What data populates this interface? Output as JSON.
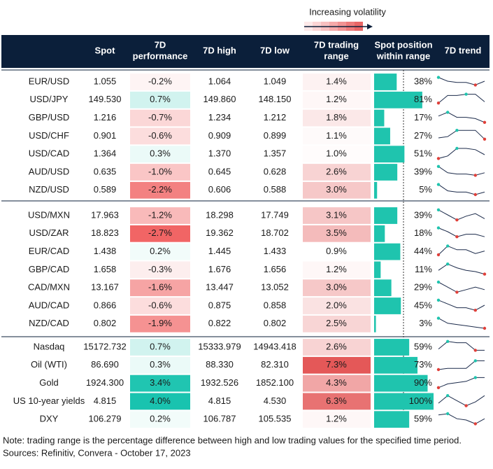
{
  "header": {
    "legend": "Increasing volatility",
    "columns": [
      [
        "Spot"
      ],
      [
        "7D",
        "performance"
      ],
      [
        "7D high"
      ],
      [
        "7D low"
      ],
      [
        "7D trading",
        "range"
      ],
      [
        "Spot position",
        "within range"
      ],
      [
        "7D trend"
      ]
    ]
  },
  "groups": [
    {
      "rows": [
        {
          "cells": [
            "EUR/USD",
            "1.055",
            "-0.2%",
            "1.064",
            "1.049",
            "1.4%",
            "38%"
          ],
          "trend": [
            8,
            5,
            4,
            4,
            2,
            5
          ]
        },
        {
          "cells": [
            "USD/JPY",
            "149.530",
            "0.7%",
            "149.860",
            "148.150",
            "1.2%",
            "81%"
          ],
          "trend": [
            2,
            8,
            8,
            9,
            9,
            3
          ]
        },
        {
          "cells": [
            "GBP/USD",
            "1.216",
            "-0.7%",
            "1.234",
            "1.212",
            "1.8%",
            "17%"
          ],
          "trend": [
            6,
            9,
            5,
            5,
            4,
            1
          ]
        },
        {
          "cells": [
            "USD/CHF",
            "0.901",
            "-0.6%",
            "0.909",
            "0.899",
            "1.1%",
            "27%"
          ],
          "trend": [
            3,
            4,
            9,
            9,
            9,
            2
          ]
        },
        {
          "cells": [
            "USD/CAD",
            "1.364",
            "0.3%",
            "1.370",
            "1.357",
            "1.0%",
            "51%"
          ],
          "trend": [
            1,
            3,
            9,
            9,
            8,
            4
          ]
        },
        {
          "cells": [
            "AUD/USD",
            "0.635",
            "-1.0%",
            "0.645",
            "0.628",
            "2.6%",
            "39%"
          ],
          "trend": [
            9,
            4,
            3,
            3,
            2,
            4
          ]
        },
        {
          "cells": [
            "NZD/USD",
            "0.589",
            "-2.2%",
            "0.606",
            "0.588",
            "3.0%",
            "5%"
          ],
          "trend": [
            9,
            4,
            3,
            3,
            1,
            3
          ]
        }
      ]
    },
    {
      "rows": [
        {
          "cells": [
            "USD/MXN",
            "17.963",
            "-1.2%",
            "18.298",
            "17.749",
            "3.1%",
            "39%"
          ],
          "trend": [
            9,
            5,
            1,
            4,
            6,
            2
          ]
        },
        {
          "cells": [
            "USD/ZAR",
            "18.823",
            "-2.7%",
            "19.362",
            "18.702",
            "3.5%",
            "18%"
          ],
          "trend": [
            9,
            6,
            2,
            4,
            4,
            2
          ]
        },
        {
          "cells": [
            "EUR/CAD",
            "1.438",
            "0.2%",
            "1.445",
            "1.433",
            "0.9%",
            "44%"
          ],
          "trend": [
            2,
            9,
            6,
            6,
            3,
            5
          ]
        },
        {
          "cells": [
            "GBP/CAD",
            "1.658",
            "-0.3%",
            "1.676",
            "1.656",
            "1.2%",
            "11%"
          ],
          "trend": [
            4,
            9,
            6,
            4,
            3,
            1
          ]
        },
        {
          "cells": [
            "CAD/MXN",
            "13.167",
            "-1.6%",
            "13.447",
            "13.052",
            "3.0%",
            "29%"
          ],
          "trend": [
            9,
            5,
            1,
            3,
            5,
            3
          ]
        },
        {
          "cells": [
            "AUD/CAD",
            "0.866",
            "-0.6%",
            "0.875",
            "0.858",
            "2.0%",
            "45%"
          ],
          "trend": [
            9,
            6,
            3,
            3,
            1,
            5
          ]
        },
        {
          "cells": [
            "NZD/CAD",
            "0.802",
            "-1.9%",
            "0.822",
            "0.802",
            "2.5%",
            "3%"
          ],
          "trend": [
            9,
            5,
            4,
            3,
            2,
            1
          ]
        }
      ]
    },
    {
      "rows": [
        {
          "cells": [
            "Nasdaq",
            "15172.732",
            "0.7%",
            "15333.979",
            "14943.418",
            "2.6%",
            "59%"
          ],
          "trend": [
            3,
            9,
            8,
            8,
            2,
            2
          ]
        },
        {
          "cells": [
            "Oil (WTI)",
            "86.690",
            "0.3%",
            "88.330",
            "82.310",
            "7.3%",
            "73%"
          ],
          "trend": [
            1,
            2,
            2,
            2,
            8,
            8
          ]
        },
        {
          "cells": [
            "Gold",
            "1924.300",
            "3.4%",
            "1932.526",
            "1852.100",
            "4.3%",
            "90%"
          ],
          "trend": [
            1,
            4,
            5,
            6,
            9,
            9
          ]
        },
        {
          "cells": [
            "US 10-year yields",
            "4.815",
            "4.0%",
            "4.815",
            "4.530",
            "6.3%",
            "100%"
          ],
          "trend": [
            3,
            9,
            5,
            1,
            4,
            9
          ]
        },
        {
          "cells": [
            "DXY",
            "106.279",
            "0.2%",
            "106.787",
            "105.535",
            "1.2%",
            "59%"
          ],
          "trend": [
            8,
            9,
            5,
            4,
            1,
            5
          ]
        }
      ]
    }
  ],
  "notes": [
    "Note: trading range is the percentage difference between high and low trading values for the specified time period.",
    "Sources: Refinitiv, Convera - October 17, 2023"
  ]
}
